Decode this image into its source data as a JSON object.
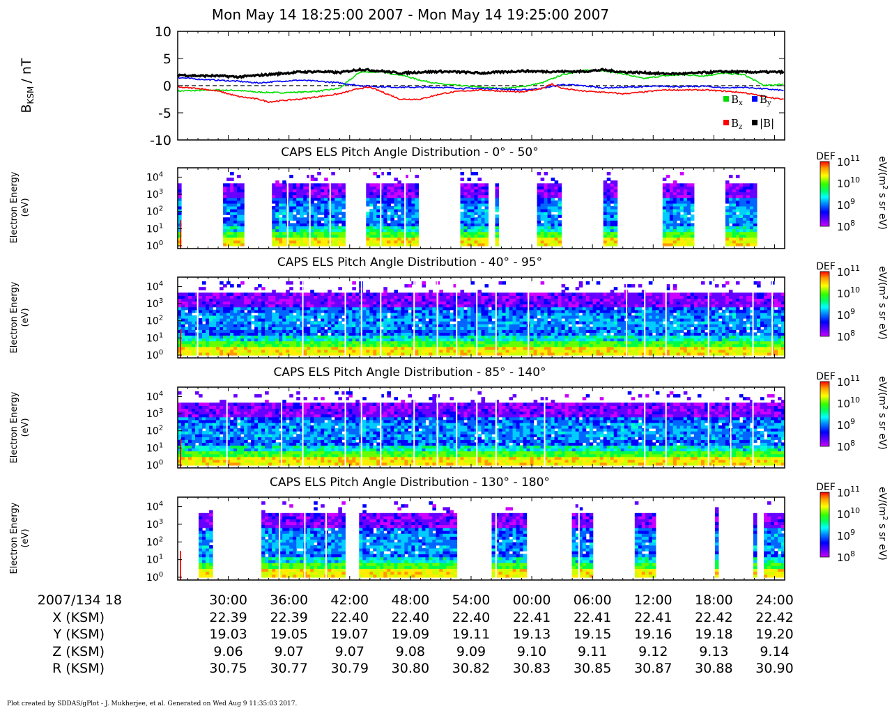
{
  "header": {
    "title": "Mon May 14 18:25:00 2007 - Mon May 14 19:25:00 2007"
  },
  "footer": {
    "credit": "Plot created by SDDAS/gPlot - J. Mukherjee, et al.  Generated on Wed Aug 9 11:35:03 2017."
  },
  "colors": {
    "bx": "#00dd00",
    "by": "#0000ff",
    "bz": "#ff0000",
    "btot": "#000000",
    "colormap": [
      "#ffffff",
      "#cc00ff",
      "#6600ff",
      "#0000ff",
      "#0066ff",
      "#00ccff",
      "#00ffcc",
      "#00ff44",
      "#66ff00",
      "#ccff00",
      "#ffee00",
      "#ff9900",
      "#ff3300"
    ]
  },
  "chart_data": [
    {
      "type": "line",
      "ylabel_main": "B",
      "ylabel_sub": "KSM",
      "ylabel_unit": "/ nT",
      "ylim": [
        -10,
        10
      ],
      "yticks": [
        10,
        5,
        0,
        -5,
        -10
      ],
      "x_units": "minutes after 2007/134 18:25:00",
      "xlim": [
        0,
        60
      ],
      "legend": [
        {
          "name": "B",
          "sub": "x",
          "color_key": "bx"
        },
        {
          "name": "B",
          "sub": "y",
          "color_key": "by"
        },
        {
          "name": "B",
          "sub": "z",
          "color_key": "bz"
        },
        {
          "name": "|B|",
          "sub": "",
          "color_key": "btot"
        }
      ],
      "legend_position": "bottom-right",
      "reference_line": 0,
      "series": [
        {
          "key": "bx",
          "x": [
            0,
            2,
            4,
            6,
            8,
            10,
            12,
            14,
            16,
            17,
            18,
            20,
            22,
            24,
            26,
            28,
            30,
            32,
            34,
            36,
            38,
            40,
            42,
            44,
            46,
            48,
            50,
            52,
            54,
            56,
            58,
            60
          ],
          "values": [
            -1.0,
            -0.9,
            -0.8,
            -0.9,
            -1.2,
            -1.3,
            -1.2,
            -1.0,
            -0.5,
            1.0,
            2.5,
            2.5,
            2.0,
            1.0,
            0.3,
            0.0,
            -0.3,
            -0.5,
            -0.2,
            0.5,
            2.0,
            2.8,
            2.8,
            2.2,
            1.3,
            1.8,
            2.0,
            1.8,
            2.3,
            2.0,
            0.0,
            0.3
          ]
        },
        {
          "key": "by",
          "x": [
            0,
            2,
            4,
            6,
            8,
            10,
            12,
            14,
            16,
            18,
            20,
            22,
            24,
            26,
            28,
            30,
            32,
            34,
            36,
            38,
            40,
            42,
            44,
            46,
            48,
            50,
            52,
            54,
            56,
            58,
            60
          ],
          "values": [
            1.5,
            1.2,
            1.0,
            0.8,
            0.5,
            0.8,
            1.0,
            0.8,
            0.5,
            0.0,
            -0.2,
            -0.3,
            -0.3,
            -0.3,
            -0.5,
            -0.5,
            -0.6,
            -0.8,
            -0.5,
            0.2,
            0.0,
            -0.4,
            -0.3,
            -0.2,
            -0.1,
            -0.2,
            -0.1,
            -0.4,
            -0.3,
            -0.6,
            -0.9
          ]
        },
        {
          "key": "bz",
          "x": [
            0,
            2,
            4,
            6,
            8,
            9,
            10,
            12,
            14,
            16,
            18,
            19,
            20,
            22,
            24,
            26,
            28,
            30,
            32,
            34,
            36,
            37,
            38,
            40,
            42,
            44,
            46,
            48,
            50,
            52,
            54,
            56,
            58,
            60
          ],
          "values": [
            -0.3,
            -0.5,
            -1.0,
            -2.0,
            -2.5,
            -3.0,
            -2.8,
            -2.5,
            -2.0,
            -1.5,
            -0.5,
            -0.3,
            -1.0,
            -2.5,
            -2.5,
            -1.5,
            -1.0,
            -0.8,
            -1.0,
            -1.2,
            -0.5,
            0.3,
            -0.5,
            -1.0,
            -1.2,
            -1.5,
            -1.2,
            -0.8,
            -0.8,
            -0.8,
            -1.0,
            -1.3,
            -2.0,
            -2.6
          ]
        },
        {
          "key": "btot",
          "x": [
            0,
            2,
            4,
            6,
            8,
            10,
            12,
            14,
            16,
            18,
            20,
            22,
            24,
            26,
            28,
            30,
            32,
            34,
            36,
            38,
            40,
            42,
            44,
            46,
            48,
            50,
            52,
            54,
            56,
            58,
            60
          ],
          "values": [
            2.0,
            1.8,
            1.8,
            1.6,
            1.9,
            2.2,
            2.5,
            2.6,
            2.4,
            3.0,
            2.7,
            2.3,
            2.5,
            2.6,
            2.5,
            2.3,
            2.5,
            2.7,
            2.6,
            2.6,
            2.6,
            2.9,
            2.5,
            2.4,
            2.2,
            2.2,
            2.4,
            2.6,
            2.5,
            2.5,
            2.5
          ]
        }
      ]
    },
    {
      "type": "heatmap",
      "title": "CAPS ELS Pitch Angle Distribution - 0° - 50°",
      "ylabel": "Electron Energy",
      "ylabel2": "(eV)",
      "y_scale": "log",
      "ylim": [
        1,
        20000
      ],
      "ytick_exponents": [
        0,
        1,
        2,
        3,
        4
      ],
      "colorbar_label": "DEF",
      "colorbar_unit_pre": "eV/(m",
      "colorbar_unit_sup": "2",
      "colorbar_unit_post": " s sr eV)",
      "colorbar_range_exponents": [
        8,
        11
      ],
      "x_units": "minutes after 2007/134 18:25:00",
      "coverage_minutes": [
        [
          0.0,
          0.5
        ],
        [
          4.6,
          6.6
        ],
        [
          9.2,
          15.9
        ],
        [
          16.0,
          16.5
        ],
        [
          18.5,
          23.7
        ],
        [
          28.0,
          30.8
        ],
        [
          31.4,
          31.8
        ],
        [
          35.4,
          37.8
        ],
        [
          42.2,
          43.3
        ],
        [
          48.1,
          51.0
        ],
        [
          54.3,
          57.1
        ]
      ],
      "gaps_minutes": [
        10.8,
        13.0,
        15.0,
        17.7,
        20.0,
        22.4
      ]
    },
    {
      "type": "heatmap",
      "title": "CAPS ELS Pitch Angle Distribution - 40° - 95°",
      "ylabel": "Electron Energy",
      "ylabel2": "(eV)",
      "y_scale": "log",
      "ylim": [
        1,
        20000
      ],
      "ytick_exponents": [
        0,
        1,
        2,
        3,
        4
      ],
      "colorbar_label": "DEF",
      "colorbar_unit_pre": "eV/(m",
      "colorbar_unit_sup": "2",
      "colorbar_unit_post": " s sr eV)",
      "colorbar_range_exponents": [
        8,
        11
      ],
      "x_units": "minutes after 2007/134 18:25:00",
      "coverage_minutes": [
        [
          0.0,
          60.0
        ]
      ],
      "gaps_minutes": [
        1.9,
        12.3,
        16.5,
        18.1,
        20.0,
        23.3,
        25.6,
        27.5,
        29.5,
        31.4,
        34.6,
        44.3,
        46.1,
        48.2,
        52.4,
        56.8,
        58.7
      ]
    },
    {
      "type": "heatmap",
      "title": "CAPS ELS Pitch Angle Distribution - 85° - 140°",
      "ylabel": "Electron Energy",
      "ylabel2": "(eV)",
      "y_scale": "log",
      "ylim": [
        1,
        20000
      ],
      "ytick_exponents": [
        0,
        1,
        2,
        3,
        4
      ],
      "colorbar_label": "DEF",
      "colorbar_unit_pre": "eV/(m",
      "colorbar_unit_sup": "2",
      "colorbar_unit_post": " s sr eV)",
      "colorbar_range_exponents": [
        8,
        11
      ],
      "x_units": "minutes after 2007/134 18:25:00",
      "coverage_minutes": [
        [
          0.0,
          60.0
        ]
      ],
      "gaps_minutes": [
        4.8,
        10.2,
        12.3,
        16.5,
        18.1,
        20.0,
        23.3,
        25.6,
        27.5,
        29.5,
        31.4,
        36.2,
        46.1,
        48.2,
        52.4,
        54.6,
        56.8
      ]
    },
    {
      "type": "heatmap",
      "title": "CAPS ELS Pitch Angle Distribution - 130° - 180°",
      "ylabel": "Electron Energy",
      "ylabel2": "(eV)",
      "y_scale": "log",
      "ylim": [
        1,
        20000
      ],
      "ytick_exponents": [
        0,
        1,
        2,
        3,
        4
      ],
      "colorbar_label": "DEF",
      "colorbar_unit_pre": "eV/(m",
      "colorbar_unit_sup": "2",
      "colorbar_unit_post": " s sr eV)",
      "colorbar_range_exponents": [
        8,
        11
      ],
      "x_units": "minutes after 2007/134 18:25:00",
      "coverage_minutes": [
        [
          2.0,
          3.4
        ],
        [
          8.2,
          16.4
        ],
        [
          17.5,
          17.7
        ],
        [
          18.0,
          27.5
        ],
        [
          31.0,
          34.5
        ],
        [
          39.0,
          41.1
        ],
        [
          45.1,
          47.2
        ],
        [
          53.0,
          53.6
        ],
        [
          57.0,
          57.2
        ],
        [
          58.0,
          60.0
        ]
      ],
      "gaps_minutes": [
        10.0,
        12.5,
        14.6,
        31.4,
        39.6
      ]
    }
  ],
  "x_axis": {
    "row_labels": [
      "2007/134 18",
      "X (KSM)",
      "Y (KSM)",
      "Z (KSM)",
      "R (KSM)"
    ],
    "tick_minutes": [
      5,
      11,
      17,
      23,
      29,
      35,
      41,
      47,
      53,
      59
    ],
    "time_labels": [
      "30:00",
      "36:00",
      "42:00",
      "48:00",
      "54:00",
      "00:00",
      "06:00",
      "12:00",
      "18:00",
      "24:00"
    ],
    "x_ksm": [
      "22.39",
      "22.39",
      "22.40",
      "22.40",
      "22.40",
      "22.41",
      "22.41",
      "22.41",
      "22.42",
      "22.42"
    ],
    "y_ksm": [
      "19.03",
      "19.05",
      "19.07",
      "19.09",
      "19.11",
      "19.13",
      "19.15",
      "19.16",
      "19.18",
      "19.20"
    ],
    "z_ksm": [
      "9.06",
      "9.07",
      "9.07",
      "9.08",
      "9.09",
      "9.10",
      "9.11",
      "9.12",
      "9.13",
      "9.14"
    ],
    "r_ksm": [
      "30.75",
      "30.77",
      "30.79",
      "30.80",
      "30.82",
      "30.83",
      "30.85",
      "30.87",
      "30.88",
      "30.90"
    ]
  }
}
